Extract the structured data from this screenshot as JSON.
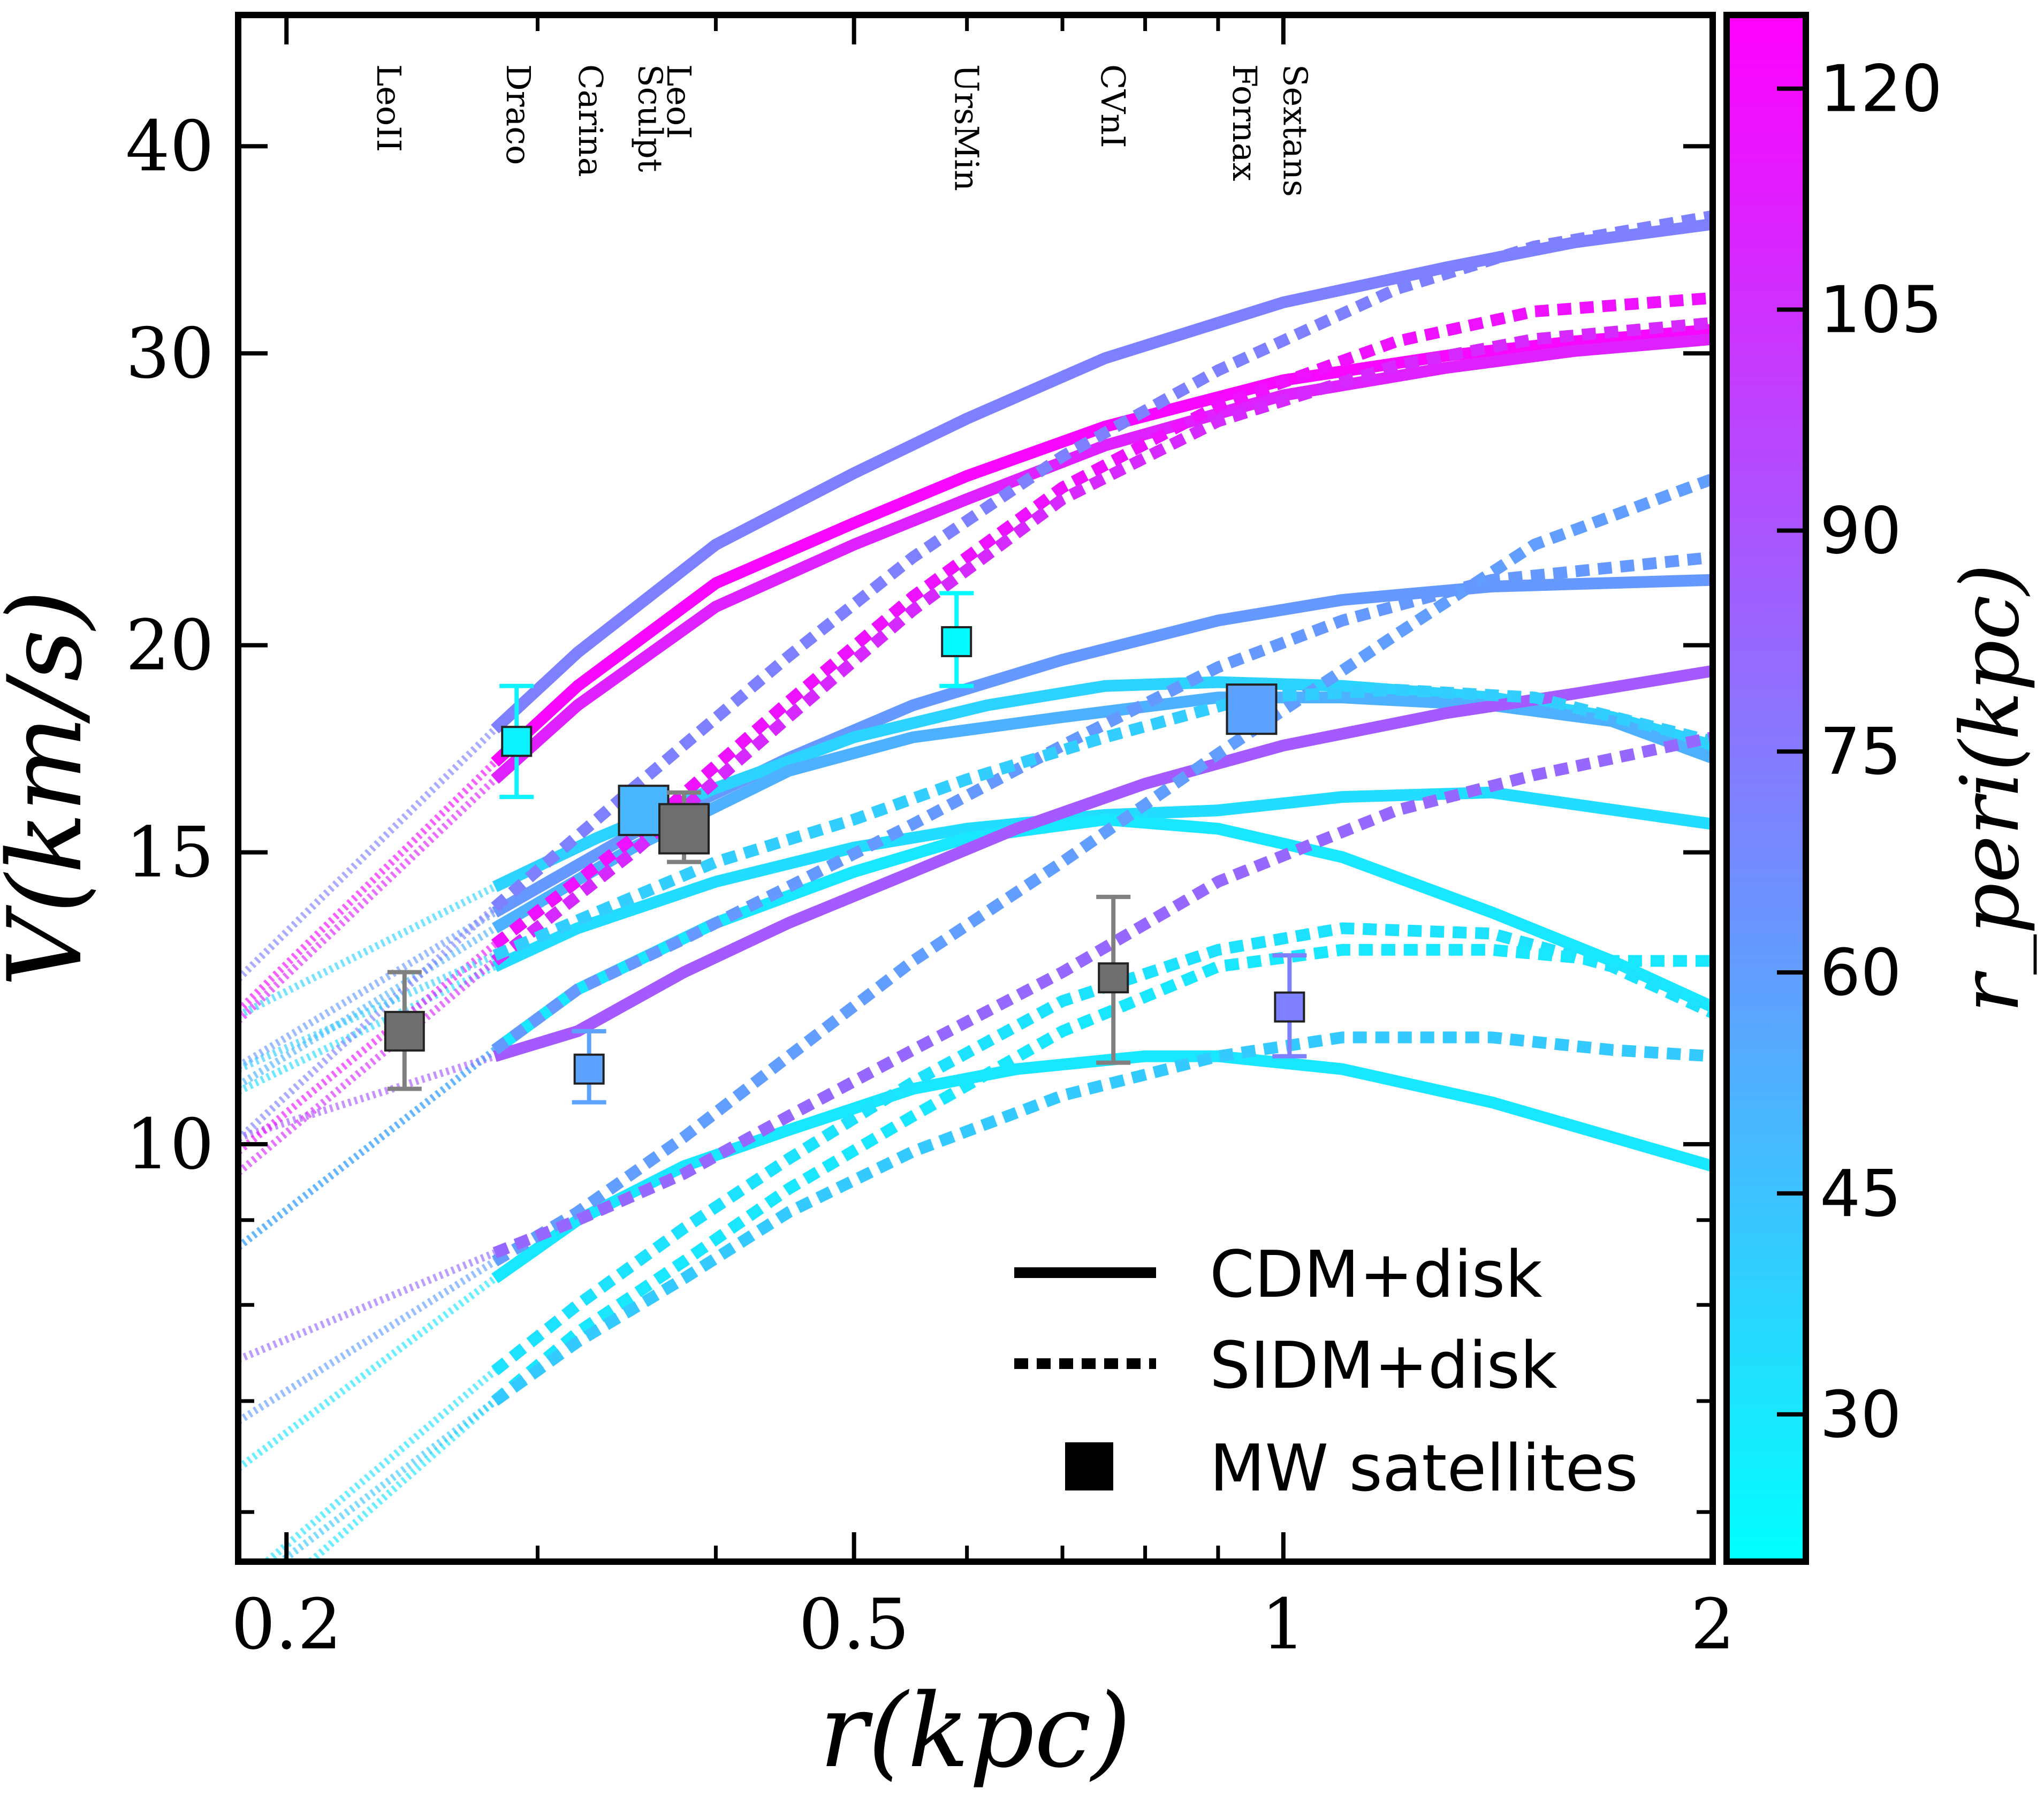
{
  "chart_data": {
    "type": "line",
    "xlabel": "r(kpc)",
    "ylabel": "V(km/s)",
    "xscale": "log",
    "yscale": "log",
    "xlim": [
      0.185,
      2.0
    ],
    "ylim": [
      5.6,
      48
    ],
    "x_ticks": [
      0.2,
      0.5,
      1,
      2
    ],
    "x_tick_labels": [
      "0.2",
      "0.5",
      "1",
      "2"
    ],
    "y_ticks": [
      10,
      15,
      20,
      30,
      40
    ],
    "y_tick_labels": [
      "10",
      "15",
      "20",
      "30",
      "40"
    ],
    "colorbar": {
      "label": "r_peri(kpc)",
      "range": [
        20,
        125
      ],
      "ticks": [
        30,
        45,
        60,
        75,
        90,
        105,
        120
      ],
      "tick_labels": [
        "30",
        "45",
        "60",
        "75",
        "90",
        "105",
        "120"
      ],
      "color_low": "#00FFFF",
      "color_high": "#FF00FF"
    },
    "satellite_labels": [
      {
        "name": "LeoII",
        "r": 0.236
      },
      {
        "name": "Draco",
        "r": 0.291
      },
      {
        "name": "Carina",
        "r": 0.327
      },
      {
        "name": "Sculpt",
        "r": 0.36
      },
      {
        "name": "LeoI",
        "r": 0.377
      },
      {
        "name": "UrsMin",
        "r": 0.6
      },
      {
        "name": "CVnI",
        "r": 0.76
      },
      {
        "name": "Fornax",
        "r": 0.94
      },
      {
        "name": "Sextans",
        "r": 1.02
      }
    ],
    "satellites": [
      {
        "name": "LeoII",
        "r": 0.242,
        "v": 11.7,
        "err_lo": 0.9,
        "err_hi": 1.0,
        "rperi": null,
        "size": "mid"
      },
      {
        "name": "Draco",
        "r": 0.29,
        "v": 17.5,
        "err_lo": 1.3,
        "err_hi": 1.4,
        "rperi": 25,
        "size": "small"
      },
      {
        "name": "Carina",
        "r": 0.326,
        "v": 11.1,
        "err_lo": 0.5,
        "err_hi": 0.6,
        "rperi": 58,
        "size": "small"
      },
      {
        "name": "Sculpt",
        "r": 0.356,
        "v": 15.9,
        "err_lo": 0.0,
        "err_hi": 0.0,
        "rperi": 50,
        "size": "big"
      },
      {
        "name": "LeoI",
        "r": 0.38,
        "v": 15.5,
        "err_lo": 0.7,
        "err_hi": 0.8,
        "rperi": null,
        "size": "big"
      },
      {
        "name": "UrsMin",
        "r": 0.59,
        "v": 20.1,
        "err_lo": 1.2,
        "err_hi": 1.4,
        "rperi": 22,
        "size": "small"
      },
      {
        "name": "CVnI",
        "r": 0.76,
        "v": 12.6,
        "err_lo": 1.4,
        "err_hi": 1.5,
        "rperi": null,
        "size": "small"
      },
      {
        "name": "Fornax",
        "r": 0.95,
        "v": 18.3,
        "err_lo": 0.0,
        "err_hi": 0.0,
        "rperi": 58,
        "size": "big"
      },
      {
        "name": "Sextans",
        "r": 1.01,
        "v": 12.1,
        "err_lo": 0.8,
        "err_hi": 0.9,
        "rperi": 72,
        "size": "small"
      }
    ],
    "series": [
      {
        "name": "CDM+disk",
        "style": "solid",
        "rperi": 72,
        "x": [
          0.28,
          0.32,
          0.4,
          0.5,
          0.6,
          0.75,
          1.0,
          1.3,
          1.6,
          2.0
        ],
        "y": [
          17.8,
          19.8,
          23.0,
          25.4,
          27.4,
          29.8,
          32.2,
          33.8,
          35.0,
          35.9
        ]
      },
      {
        "name": "CDM+disk",
        "style": "solid",
        "rperi": 122,
        "x": [
          0.28,
          0.32,
          0.4,
          0.5,
          0.6,
          0.75,
          1.0,
          1.3,
          1.6,
          2.0
        ],
        "y": [
          17.0,
          18.9,
          21.8,
          23.7,
          25.3,
          27.1,
          28.9,
          29.9,
          30.5,
          31.0
        ]
      },
      {
        "name": "CDM+disk",
        "style": "solid",
        "rperi": 112,
        "x": [
          0.28,
          0.32,
          0.4,
          0.5,
          0.6,
          0.75,
          1.0,
          1.3,
          1.6,
          2.0
        ],
        "y": [
          16.6,
          18.4,
          21.1,
          23.0,
          24.5,
          26.4,
          28.3,
          29.4,
          30.1,
          30.6
        ]
      },
      {
        "name": "CDM+disk",
        "style": "solid",
        "rperi": 62,
        "x": [
          0.28,
          0.35,
          0.45,
          0.55,
          0.7,
          0.9,
          1.1,
          1.4,
          2.0
        ],
        "y": [
          13.8,
          15.4,
          17.1,
          18.4,
          19.6,
          20.7,
          21.3,
          21.7,
          21.9
        ]
      },
      {
        "name": "CDM+disk",
        "style": "solid",
        "rperi": 38,
        "x": [
          0.28,
          0.33,
          0.4,
          0.5,
          0.62,
          0.75,
          0.9,
          1.1,
          1.4,
          1.7,
          2.0
        ],
        "y": [
          14.3,
          15.3,
          16.4,
          17.6,
          18.4,
          18.9,
          19.0,
          18.9,
          18.6,
          18.1,
          17.4
        ]
      },
      {
        "name": "CDM+disk",
        "style": "solid",
        "rperi": 52,
        "x": [
          0.28,
          0.35,
          0.45,
          0.55,
          0.7,
          0.9,
          1.1,
          1.4,
          1.7,
          2.0
        ],
        "y": [
          13.5,
          15.1,
          16.8,
          17.6,
          18.1,
          18.6,
          18.6,
          18.4,
          18.0,
          17.1
        ]
      },
      {
        "name": "CDM+disk",
        "style": "solid",
        "rperi": 34,
        "x": [
          0.28,
          0.32,
          0.4,
          0.5,
          0.6,
          0.75,
          0.9,
          1.1,
          1.4,
          2.0
        ],
        "y": [
          12.8,
          13.5,
          14.4,
          15.1,
          15.5,
          15.8,
          15.9,
          16.2,
          16.3,
          15.6
        ]
      },
      {
        "name": "CDM+disk",
        "style": "solid",
        "rperi": 30,
        "x": [
          0.28,
          0.32,
          0.4,
          0.5,
          0.6,
          0.75,
          0.9,
          1.1,
          1.4,
          1.7,
          2.0
        ],
        "y": [
          11.4,
          12.4,
          13.6,
          14.6,
          15.3,
          15.7,
          15.5,
          14.9,
          13.8,
          12.9,
          12.1
        ]
      },
      {
        "name": "CDM+disk",
        "style": "solid",
        "rperi": 88,
        "x": [
          0.28,
          0.32,
          0.38,
          0.45,
          0.55,
          0.65,
          0.8,
          1.0,
          1.3,
          1.6,
          2.0
        ],
        "y": [
          11.3,
          11.7,
          12.7,
          13.6,
          14.6,
          15.5,
          16.5,
          17.4,
          18.2,
          18.7,
          19.3
        ]
      },
      {
        "name": "CDM+disk",
        "style": "solid",
        "rperi": 30,
        "x": [
          0.28,
          0.32,
          0.38,
          0.45,
          0.55,
          0.65,
          0.8,
          0.9,
          1.1,
          1.4,
          2.0
        ],
        "y": [
          8.3,
          9.0,
          9.7,
          10.2,
          10.8,
          11.1,
          11.3,
          11.3,
          11.1,
          10.6,
          9.7
        ]
      },
      {
        "name": "SIDM+disk",
        "style": "dotted",
        "rperi": 72,
        "x": [
          0.28,
          0.35,
          0.45,
          0.55,
          0.7,
          0.9,
          1.2,
          1.5,
          2.0
        ],
        "y": [
          13.9,
          16.4,
          19.7,
          22.6,
          26.0,
          29.3,
          32.8,
          34.8,
          36.3
        ]
      },
      {
        "name": "SIDM+disk",
        "style": "dotted",
        "rperi": 118,
        "x": [
          0.28,
          0.35,
          0.45,
          0.55,
          0.7,
          0.9,
          1.2,
          1.5,
          2.0
        ],
        "y": [
          13.2,
          15.3,
          18.5,
          21.4,
          24.9,
          27.9,
          30.5,
          31.8,
          32.4
        ]
      },
      {
        "name": "SIDM+disk",
        "style": "dotted",
        "rperi": 108,
        "x": [
          0.28,
          0.35,
          0.45,
          0.55,
          0.7,
          0.9,
          1.2,
          1.5,
          2.0
        ],
        "y": [
          12.9,
          15.0,
          18.1,
          21.0,
          24.5,
          27.3,
          29.5,
          30.6,
          31.3
        ]
      },
      {
        "name": "SIDM+disk",
        "style": "dotted",
        "rperi": 60,
        "x": [
          0.28,
          0.32,
          0.38,
          0.45,
          0.55,
          0.7,
          0.9,
          1.2,
          1.5,
          2.0
        ],
        "y": [
          8.5,
          9.1,
          10.1,
          11.3,
          12.9,
          14.8,
          17.2,
          20.3,
          23.0,
          25.2
        ]
      },
      {
        "name": "SIDM+disk",
        "style": "dotted",
        "rperi": 62,
        "x": [
          0.28,
          0.32,
          0.38,
          0.45,
          0.55,
          0.7,
          0.9,
          1.1,
          1.4,
          2.0
        ],
        "y": [
          11.4,
          12.4,
          13.3,
          14.3,
          15.6,
          17.4,
          19.4,
          20.7,
          21.9,
          22.6
        ]
      },
      {
        "name": "SIDM+disk",
        "style": "dotted",
        "rperi": 40,
        "x": [
          0.28,
          0.33,
          0.4,
          0.5,
          0.6,
          0.75,
          0.95,
          1.2,
          1.5,
          2.0
        ],
        "y": [
          13.0,
          13.8,
          14.8,
          15.7,
          16.6,
          17.6,
          18.6,
          18.8,
          18.6,
          17.5
        ]
      },
      {
        "name": "SIDM+disk",
        "style": "dotted",
        "rperi": 82,
        "x": [
          0.28,
          0.32,
          0.38,
          0.45,
          0.55,
          0.7,
          0.9,
          1.2,
          1.5,
          2.0
        ],
        "y": [
          8.6,
          9.0,
          9.6,
          10.4,
          11.4,
          12.7,
          14.4,
          15.9,
          16.7,
          17.6
        ]
      },
      {
        "name": "SIDM+disk",
        "style": "dotted",
        "rperi": 32,
        "x": [
          0.28,
          0.32,
          0.38,
          0.45,
          0.55,
          0.7,
          0.9,
          1.1,
          1.4,
          1.7,
          2.0
        ],
        "y": [
          7.3,
          8.0,
          8.9,
          9.8,
          10.9,
          12.2,
          13.1,
          13.5,
          13.4,
          12.8,
          12.0
        ]
      },
      {
        "name": "SIDM+disk",
        "style": "dotted",
        "rperi": 30,
        "x": [
          0.28,
          0.32,
          0.38,
          0.45,
          0.55,
          0.7,
          0.9,
          1.1,
          1.4,
          1.7,
          2.0
        ],
        "y": [
          7.0,
          7.7,
          8.5,
          9.4,
          10.4,
          11.7,
          12.8,
          13.1,
          13.1,
          12.9,
          12.9
        ]
      },
      {
        "name": "SIDM+disk",
        "style": "dotted",
        "rperi": 42,
        "x": [
          0.28,
          0.32,
          0.38,
          0.45,
          0.55,
          0.7,
          0.9,
          1.1,
          1.4,
          1.7,
          2.0
        ],
        "y": [
          7.0,
          7.6,
          8.3,
          9.1,
          9.9,
          10.7,
          11.3,
          11.6,
          11.6,
          11.4,
          11.3
        ]
      }
    ],
    "legend": {
      "position": "lower-right",
      "entries": [
        {
          "label": "CDM+disk",
          "style": "solid"
        },
        {
          "label": "SIDM+disk",
          "style": "dotted"
        },
        {
          "label": "MW satellites",
          "style": "square"
        }
      ]
    }
  }
}
